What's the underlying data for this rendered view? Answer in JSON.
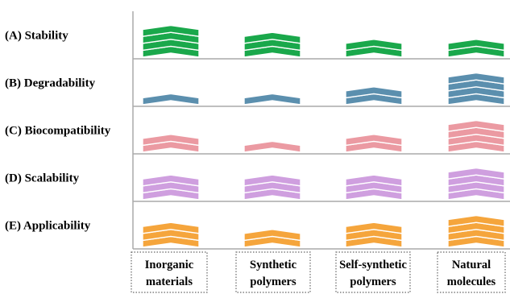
{
  "chart_data": {
    "type": "bar",
    "categories": [
      "Inorganic materials",
      "Synthetic polymers",
      "Self-synthetic polymers",
      "Natural molecules"
    ],
    "category_lines": [
      [
        "Inorganic",
        "materials"
      ],
      [
        "Synthetic",
        "polymers"
      ],
      [
        "Self-synthetic",
        "polymers"
      ],
      [
        "Natural",
        "molecules"
      ]
    ],
    "series": [
      {
        "label": "(A) Stability",
        "color": "#1aa84b",
        "values": [
          4,
          3,
          2,
          2
        ]
      },
      {
        "label": "(B) Degradability",
        "color": "#5b8fae",
        "values": [
          1,
          1,
          2,
          4
        ]
      },
      {
        "label": "(C) Biocompatibility",
        "color": "#eb9aa2",
        "values": [
          2,
          1,
          2,
          4
        ]
      },
      {
        "label": "(D) Scalability",
        "color": "#cf9fdf",
        "values": [
          3,
          3,
          3,
          4
        ]
      },
      {
        "label": "(E) Applicability",
        "color": "#f5a53c",
        "values": [
          3,
          2,
          3,
          4
        ]
      }
    ],
    "axis_color": "#aaaaaa"
  }
}
